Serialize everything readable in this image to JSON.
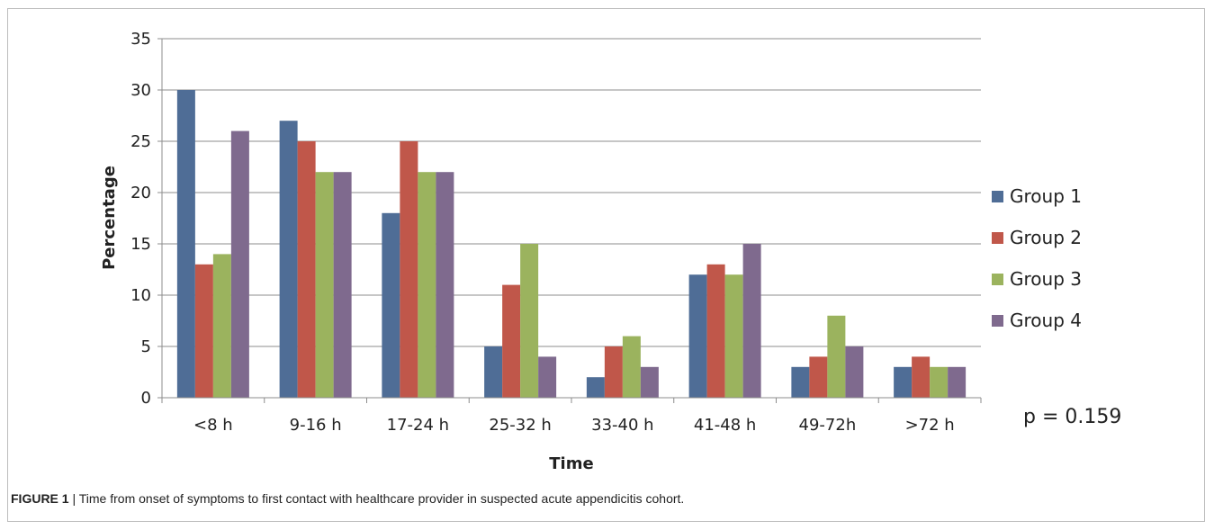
{
  "chart_data": {
    "type": "bar",
    "title": "",
    "xlabel": "Time",
    "ylabel": "Percentage",
    "ylim": [
      0,
      35
    ],
    "yticks": [
      "0",
      "5",
      "10",
      "15",
      "20",
      "25",
      "30",
      "35"
    ],
    "categories": [
      "<8 h",
      "9-16 h",
      "17-24 h",
      "25-32 h",
      "33-40 h",
      "41-48 h",
      "49-72h",
      ">72 h"
    ],
    "series": [
      {
        "name": "Group 1",
        "color": "#4f6d96",
        "values": [
          30,
          27,
          18,
          5,
          2,
          12,
          3,
          3
        ]
      },
      {
        "name": "Group 2",
        "color": "#c0574a",
        "values": [
          13,
          25,
          25,
          11,
          5,
          13,
          4,
          4
        ]
      },
      {
        "name": "Group 3",
        "color": "#9bb35e",
        "values": [
          14,
          22,
          22,
          15,
          6,
          12,
          8,
          3
        ]
      },
      {
        "name": "Group 4",
        "color": "#7f6a8e",
        "values": [
          26,
          22,
          22,
          4,
          3,
          15,
          5,
          3
        ]
      }
    ],
    "grid": true,
    "legend_position": "right",
    "annotation": "p = 0.159"
  },
  "caption": {
    "label": "FIGURE 1",
    "separator": " | ",
    "text": "Time from onset of symptoms to first contact with healthcare provider in suspected acute appendicitis cohort."
  }
}
